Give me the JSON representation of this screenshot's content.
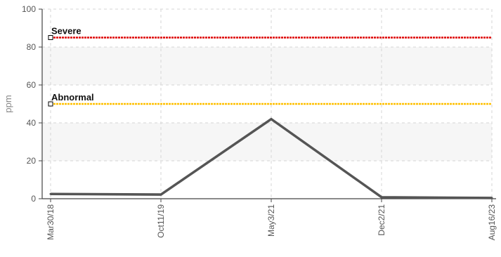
{
  "chart_data": {
    "type": "line",
    "xlabel": "",
    "ylabel": "ppm",
    "ylim": [
      0,
      100
    ],
    "yticks": [
      0,
      20,
      40,
      60,
      80,
      100
    ],
    "grid": true,
    "categories": [
      "Mar30/18",
      "Oct11/19",
      "May3/21",
      "Dec2/21",
      "Aug16/23"
    ],
    "series": [
      {
        "values": [
          2.5,
          2.2,
          42,
          0.8,
          0.4
        ],
        "color": "#555555"
      }
    ],
    "thresholds": [
      {
        "label": "Severe",
        "value": 85,
        "color": "#dd0000"
      },
      {
        "label": "Abnormal",
        "value": 50,
        "color": "#ffc000"
      }
    ]
  }
}
